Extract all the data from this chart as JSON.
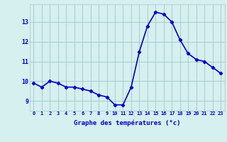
{
  "hours": [
    0,
    1,
    2,
    3,
    4,
    5,
    6,
    7,
    8,
    9,
    10,
    11,
    12,
    13,
    14,
    15,
    16,
    17,
    18,
    19,
    20,
    21,
    22,
    23
  ],
  "temps": [
    9.9,
    9.7,
    10.0,
    9.9,
    9.7,
    9.7,
    9.6,
    9.5,
    9.3,
    9.2,
    8.8,
    8.8,
    9.7,
    11.5,
    12.8,
    13.5,
    13.4,
    13.0,
    12.1,
    11.4,
    11.1,
    11.0,
    10.7,
    10.4
  ],
  "line_color": "#0000cc",
  "marker": "D",
  "markersize": 2.2,
  "bg_color": "#d6efef",
  "grid_color": "#a0c8c8",
  "xlabel": "Graphe des températures (°c)",
  "xlabel_color": "#0000cc",
  "tick_color": "#0000cc",
  "ylim": [
    8.5,
    13.9
  ],
  "yticks": [
    9,
    10,
    11,
    12,
    13
  ],
  "xticks": [
    0,
    1,
    2,
    3,
    4,
    5,
    6,
    7,
    8,
    9,
    10,
    11,
    12,
    13,
    14,
    15,
    16,
    17,
    18,
    19,
    20,
    21,
    22,
    23
  ],
  "linewidth": 1.2
}
